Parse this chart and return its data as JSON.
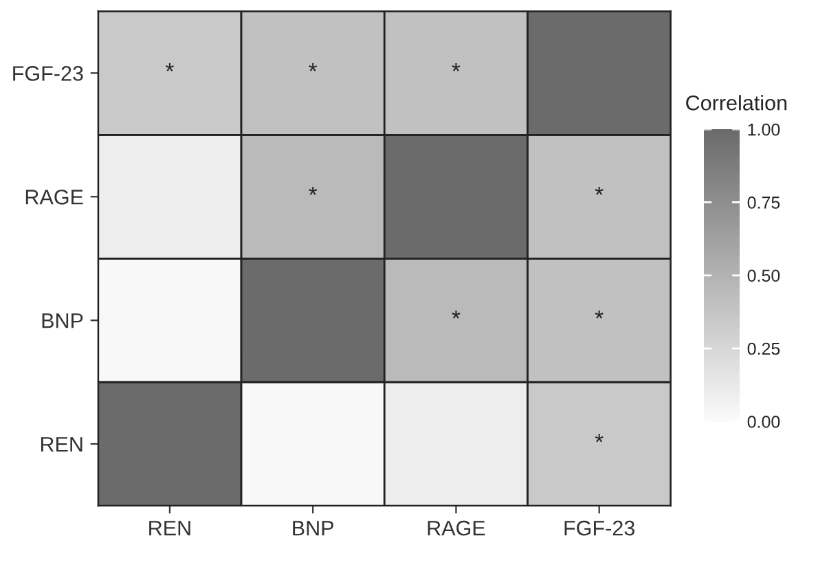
{
  "chart_data": {
    "type": "heatmap",
    "clabel": "Correlation",
    "categories": [
      "REN",
      "BNP",
      "RAGE",
      "FGF-23"
    ],
    "y_categories": [
      "FGF-23",
      "RAGE",
      "BNP",
      "REN"
    ],
    "cells": [
      [
        0.35,
        0.4,
        0.4,
        1.0
      ],
      [
        0.1,
        0.45,
        1.0,
        0.4
      ],
      [
        0.02,
        1.0,
        0.45,
        0.4
      ],
      [
        1.0,
        0.02,
        0.1,
        0.35
      ]
    ],
    "cell_labels": [
      [
        "*",
        "*",
        "*",
        null
      ],
      [
        null,
        "*",
        null,
        "*"
      ],
      [
        null,
        null,
        "*",
        "*"
      ],
      [
        null,
        null,
        null,
        "*"
      ]
    ],
    "clim": [
      0,
      1
    ],
    "cticks": [
      {
        "value": 0,
        "label": "0.00"
      },
      {
        "value": 0.25,
        "label": "0.25"
      },
      {
        "value": 0.5,
        "label": "0.50"
      },
      {
        "value": 0.75,
        "label": "0.75"
      },
      {
        "value": 1,
        "label": "1.00"
      }
    ]
  }
}
